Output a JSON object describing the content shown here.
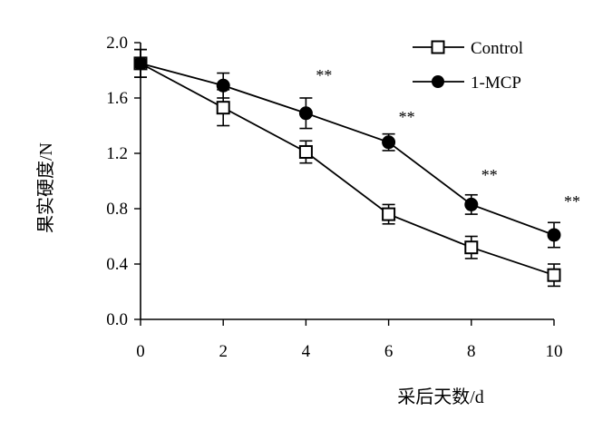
{
  "chart_data": {
    "type": "line",
    "title": "",
    "xlabel": "采后天数/d",
    "ylabel": "果实硬度/N",
    "x": [
      0,
      2,
      4,
      6,
      8,
      10
    ],
    "xlim": [
      0,
      10
    ],
    "ylim": [
      0,
      2.0
    ],
    "xticks": [
      "0",
      "2",
      "4",
      "6",
      "8",
      "10"
    ],
    "yticks": [
      "0.0",
      "0.4",
      "0.8",
      "1.2",
      "1.6",
      "2.0"
    ],
    "grid": false,
    "legend_position": "top-right",
    "series": [
      {
        "name": "Control",
        "marker": "open-square",
        "values": [
          1.85,
          1.53,
          1.21,
          0.76,
          0.52,
          0.32
        ],
        "errors": [
          0.1,
          0.13,
          0.08,
          0.07,
          0.08,
          0.08
        ]
      },
      {
        "name": "1-MCP",
        "marker": "filled-circle",
        "values": [
          1.85,
          1.69,
          1.49,
          1.28,
          0.83,
          0.61
        ],
        "errors": [
          0.1,
          0.09,
          0.11,
          0.06,
          0.07,
          0.09
        ]
      }
    ],
    "annotations": [
      {
        "x": 4,
        "y": 1.79,
        "text": "**"
      },
      {
        "x": 6,
        "y": 1.49,
        "text": "**"
      },
      {
        "x": 8,
        "y": 1.07,
        "text": "**"
      },
      {
        "x": 10,
        "y": 0.88,
        "text": "**"
      }
    ]
  }
}
